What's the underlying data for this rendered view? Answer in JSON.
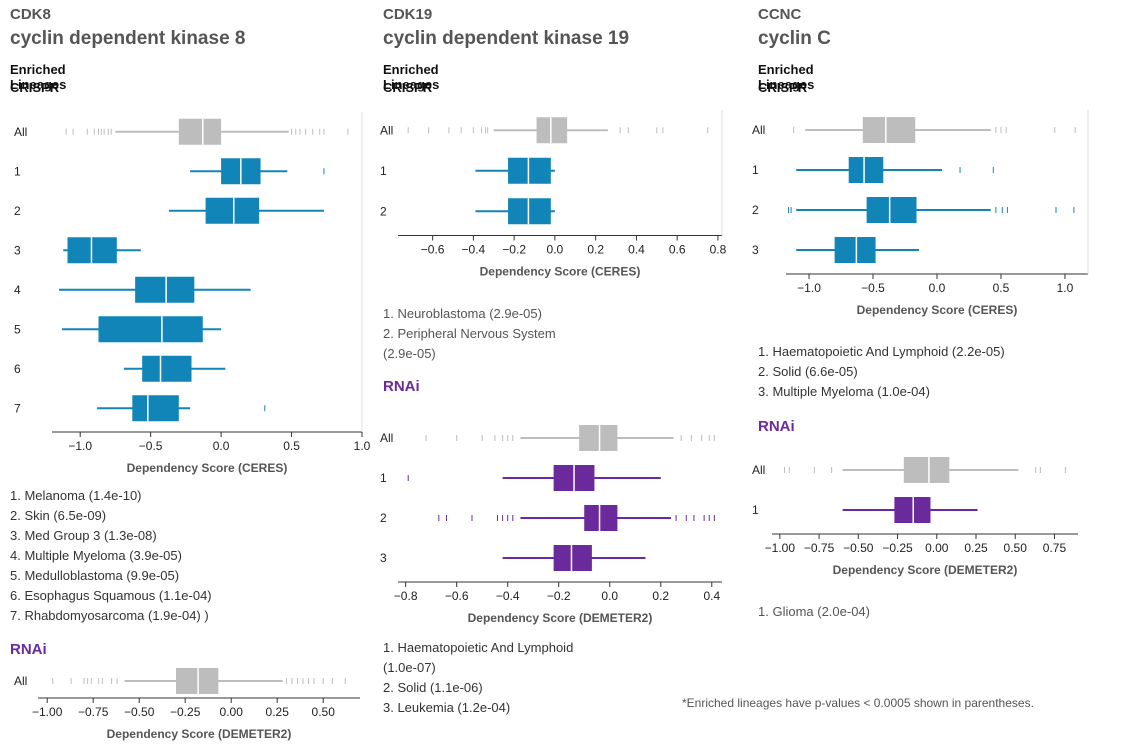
{
  "panels": [
    {
      "gene": "CDK8",
      "full_name": "cyclin dependent kinase 8",
      "section_label": "Enriched Lineages",
      "crispr_label": "CRISPR",
      "rnai_label": "RNAi",
      "lineages": [
        "1. Melanoma (1.4e-10)",
        "2. Skin (6.5e-09)",
        "3. Med Group 3 (1.3e-08)",
        "4. Multiple Myeloma (3.9e-05)",
        "5. Medulloblastoma (9.9e-05)",
        "6. Esophagus Squamous (1.1e-04)",
        "7. Rhabdomyosarcoma (1.9e-04) )"
      ]
    },
    {
      "gene": "CDK19",
      "full_name": "cyclin dependent kinase 19",
      "section_label": "Enriched Lineages",
      "crispr_label": "CRISPR",
      "rnai_label": "RNAi",
      "lineages": [
        "1. Neuroblastoma (2.9e-05)",
        "2. Peripheral Nervous System",
        "(2.9e-05)"
      ],
      "rnai_lineages": [
        "1. Haematopoietic And Lymphoid",
        "(1.0e-07)",
        "2. Solid (1.1e-06)",
        "3. Leukemia (1.2e-04)"
      ]
    },
    {
      "gene": "CCNC",
      "full_name": "cyclin C",
      "section_label": "Enriched Lineages",
      "crispr_label": "CRISPR",
      "rnai_label": "RNAi",
      "lineages": [
        "1. Haematopoietic And Lymphoid (2.2e-05)",
        "2. Solid (6.6e-05)",
        "3. Multiple Myeloma (1.0e-04)"
      ],
      "rnai_lineages": [
        "1. Glioma (2.0e-04)"
      ]
    }
  ],
  "footnote": "*Enriched lineages have p-values  < 0.0005 shown in parentheses.",
  "colors": {
    "crispr": "#1185b8",
    "rnai": "#6a2a9c",
    "all": "#bdbdbd"
  },
  "chart_data": [
    {
      "id": "cdk8-crispr",
      "type": "boxplot",
      "xlabel": "Dependency Score (CERES)",
      "xticks": [
        -1.0,
        -0.5,
        0.0,
        0.5,
        1.0
      ],
      "xtick_labels": [
        "−1.0",
        "−0.5",
        "0.0",
        "0.5",
        "1.0"
      ],
      "xlim": [
        -1.2,
        1.0
      ],
      "rows": [
        {
          "label": "All",
          "kind": "all",
          "whisker": [
            -0.75,
            0.48
          ],
          "box": [
            -0.3,
            0.0
          ],
          "median": -0.13,
          "outliers": [
            -1.1,
            -1.05,
            -0.95,
            -0.9,
            -0.87,
            -0.85,
            -0.83,
            -0.8,
            -0.78,
            0.5,
            0.53,
            0.56,
            0.6,
            0.65,
            0.7,
            0.73,
            0.9
          ]
        },
        {
          "label": "1",
          "kind": "lin",
          "whisker": [
            -0.22,
            0.47
          ],
          "box": [
            0.0,
            0.28
          ],
          "median": 0.14,
          "outliers": [
            0.73
          ]
        },
        {
          "label": "2",
          "kind": "lin",
          "whisker": [
            -0.37,
            0.73
          ],
          "box": [
            -0.11,
            0.27
          ],
          "median": 0.09,
          "outliers": []
        },
        {
          "label": "3",
          "kind": "lin",
          "whisker": [
            -1.12,
            -0.57
          ],
          "box": [
            -1.09,
            -0.74
          ],
          "median": -0.92,
          "outliers": []
        },
        {
          "label": "4",
          "kind": "lin",
          "whisker": [
            -1.15,
            0.21
          ],
          "box": [
            -0.61,
            -0.19
          ],
          "median": -0.39,
          "outliers": []
        },
        {
          "label": "5",
          "kind": "lin",
          "whisker": [
            -1.13,
            0.0
          ],
          "box": [
            -0.87,
            -0.13
          ],
          "median": -0.42,
          "outliers": []
        },
        {
          "label": "6",
          "kind": "lin",
          "whisker": [
            -0.69,
            0.03
          ],
          "box": [
            -0.56,
            -0.21
          ],
          "median": -0.43,
          "outliers": []
        },
        {
          "label": "7",
          "kind": "lin",
          "whisker": [
            -0.88,
            -0.22
          ],
          "box": [
            -0.63,
            -0.3
          ],
          "median": -0.52,
          "outliers": [
            0.31
          ]
        }
      ]
    },
    {
      "id": "cdk8-rnai",
      "type": "boxplot",
      "xlabel": "Dependency Score (DEMETER2)",
      "xticks": [
        -1.0,
        -0.75,
        -0.5,
        -0.25,
        0.0,
        0.25,
        0.5
      ],
      "xtick_labels": [
        "−1.00",
        "−0.75",
        "−0.50",
        "−0.25",
        "0.00",
        "0.25",
        "0.50"
      ],
      "xlim": [
        -1.05,
        0.7
      ],
      "rows": [
        {
          "label": "All",
          "kind": "all",
          "whisker": [
            -0.58,
            0.28
          ],
          "box": [
            -0.3,
            -0.07
          ],
          "median": -0.18,
          "outliers": [
            -0.97,
            -0.87,
            -0.8,
            -0.78,
            -0.76,
            -0.72,
            -0.7,
            -0.65,
            -0.62,
            0.3,
            0.33,
            0.36,
            0.39,
            0.42,
            0.45,
            0.5,
            0.55,
            0.62
          ]
        }
      ]
    },
    {
      "id": "cdk19-crispr",
      "type": "boxplot",
      "xlabel": "Dependency Score (CERES)",
      "xticks": [
        -0.6,
        -0.4,
        -0.2,
        0.0,
        0.2,
        0.4,
        0.6,
        0.8
      ],
      "xtick_labels": [
        "−0.6",
        "−0.4",
        "−0.2",
        "0.0",
        "0.2",
        "0.4",
        "0.6",
        "0.8"
      ],
      "xlim": [
        -0.77,
        0.82
      ],
      "rows": [
        {
          "label": "All",
          "kind": "all",
          "whisker": [
            -0.3,
            0.26
          ],
          "box": [
            -0.09,
            0.06
          ],
          "median": -0.02,
          "outliers": [
            -0.72,
            -0.62,
            -0.52,
            -0.46,
            -0.4,
            -0.36,
            -0.34,
            -0.33,
            0.32,
            0.36,
            0.5,
            0.53,
            0.75
          ]
        },
        {
          "label": "1",
          "kind": "lin",
          "whisker": [
            -0.39,
            0.0
          ],
          "box": [
            -0.23,
            -0.02
          ],
          "median": -0.13,
          "outliers": []
        },
        {
          "label": "2",
          "kind": "lin",
          "whisker": [
            -0.39,
            0.0
          ],
          "box": [
            -0.23,
            -0.02
          ],
          "median": -0.13,
          "outliers": []
        }
      ]
    },
    {
      "id": "cdk19-rnai",
      "type": "boxplot",
      "xlabel": "Dependency Score (DEMETER2)",
      "xticks": [
        -0.8,
        -0.6,
        -0.4,
        -0.2,
        0.0,
        0.2,
        0.4
      ],
      "xtick_labels": [
        "−0.8",
        "−0.6",
        "−0.4",
        "−0.2",
        "0.0",
        "0.2",
        "0.4"
      ],
      "xlim": [
        -0.83,
        0.44
      ],
      "rows": [
        {
          "label": "All",
          "kind": "all",
          "whisker": [
            -0.35,
            0.25
          ],
          "box": [
            -0.12,
            0.03
          ],
          "median": -0.04,
          "outliers": [
            -0.72,
            -0.6,
            -0.5,
            -0.45,
            -0.42,
            -0.4,
            -0.38,
            0.28,
            0.32,
            0.36,
            0.39,
            0.41
          ]
        },
        {
          "label": "1",
          "kind": "lin",
          "whisker": [
            -0.42,
            0.2
          ],
          "box": [
            -0.22,
            -0.06
          ],
          "median": -0.14,
          "outliers": [
            -0.79
          ]
        },
        {
          "label": "2",
          "kind": "lin",
          "whisker": [
            -0.35,
            0.24
          ],
          "box": [
            -0.1,
            0.03
          ],
          "median": -0.04,
          "outliers": [
            -0.67,
            -0.64,
            -0.54,
            -0.44,
            -0.42,
            -0.4,
            -0.38,
            0.26,
            0.3,
            0.33,
            0.37,
            0.39,
            0.41
          ]
        },
        {
          "label": "3",
          "kind": "lin",
          "whisker": [
            -0.42,
            0.14
          ],
          "box": [
            -0.22,
            -0.07
          ],
          "median": -0.15,
          "outliers": []
        }
      ]
    },
    {
      "id": "ccnc-crispr",
      "type": "boxplot",
      "xlabel": "Dependency Score (CERES)",
      "xticks": [
        -1.0,
        -0.5,
        0.0,
        0.5,
        1.0
      ],
      "xtick_labels": [
        "−1.0",
        "−0.5",
        "0.0",
        "0.5",
        "1.0"
      ],
      "xlim": [
        -1.18,
        1.18
      ],
      "rows": [
        {
          "label": "All",
          "kind": "all",
          "whisker": [
            -1.03,
            0.42
          ],
          "box": [
            -0.58,
            -0.17
          ],
          "median": -0.4,
          "outliers": [
            -1.12,
            0.46,
            0.5,
            0.54,
            0.92,
            1.08
          ]
        },
        {
          "label": "1",
          "kind": "lin",
          "whisker": [
            -1.1,
            0.04
          ],
          "box": [
            -0.69,
            -0.42
          ],
          "median": -0.57,
          "outliers": [
            0.18,
            0.44
          ]
        },
        {
          "label": "2",
          "kind": "lin",
          "whisker": [
            -1.1,
            0.42
          ],
          "box": [
            -0.55,
            -0.16
          ],
          "median": -0.37,
          "outliers": [
            -1.16,
            -1.14,
            0.46,
            0.51,
            0.55,
            0.93,
            1.07
          ]
        },
        {
          "label": "3",
          "kind": "lin",
          "whisker": [
            -1.1,
            -0.14
          ],
          "box": [
            -0.8,
            -0.48
          ],
          "median": -0.63,
          "outliers": []
        }
      ]
    },
    {
      "id": "ccnc-rnai",
      "type": "boxplot",
      "xlabel": "Dependency Score (DEMETER2)",
      "xticks": [
        -1.0,
        -0.75,
        -0.5,
        -0.25,
        0.0,
        0.25,
        0.5,
        0.75
      ],
      "xtick_labels": [
        "−1.00",
        "−0.75",
        "−0.50",
        "−0.25",
        "0.00",
        "0.25",
        "0.50",
        "0.75"
      ],
      "xlim": [
        -1.05,
        0.9
      ],
      "rows": [
        {
          "label": "All",
          "kind": "all",
          "whisker": [
            -0.6,
            0.52
          ],
          "box": [
            -0.21,
            0.08
          ],
          "median": -0.05,
          "outliers": [
            -0.97,
            -0.94,
            -0.78,
            -0.67,
            0.63,
            0.66,
            0.82
          ]
        },
        {
          "label": "1",
          "kind": "lin",
          "whisker": [
            -0.6,
            0.26
          ],
          "box": [
            -0.27,
            -0.04
          ],
          "median": -0.15,
          "outliers": []
        }
      ]
    }
  ]
}
